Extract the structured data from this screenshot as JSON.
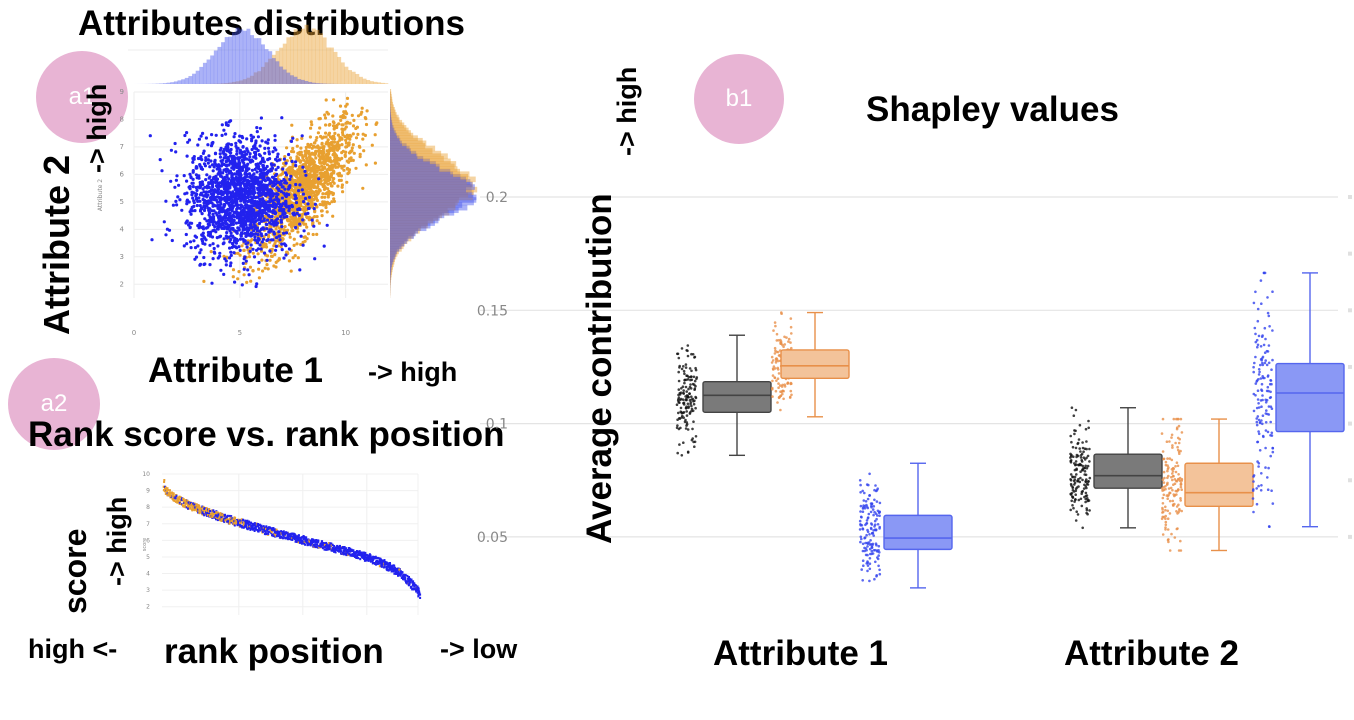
{
  "badges": {
    "a1": "a1",
    "a2": "a2",
    "b1": "b1"
  },
  "panel_a1": {
    "title": "Attributes distributions",
    "xlabel": "Attribute 1",
    "xlabel_dir": "-> high",
    "ylabel": "Attribute 2",
    "ylabel_dir": "-> high",
    "inner_ylabel": "Attribute 2",
    "xticks": [
      "0",
      "5",
      "10"
    ],
    "yticks": [
      "2",
      "3",
      "4",
      "5",
      "6",
      "7",
      "8",
      "9"
    ]
  },
  "panel_a2": {
    "title": "Rank score vs. rank position",
    "ylabel": "score",
    "ylabel_dir": "-> high",
    "xlabel": "rank position",
    "x_left": "high <-",
    "x_right": "-> low",
    "inner_ylabel": "score",
    "yticks": [
      "2",
      "3",
      "4",
      "5",
      "6",
      "7",
      "8",
      "9",
      "10"
    ]
  },
  "panel_b1": {
    "title": "Shapley values",
    "ylabel": "Average contribution",
    "ylabel_dir": "-> high",
    "categories": [
      "Attribute 1",
      "Attribute 2"
    ],
    "yticks": [
      "0.05",
      "0.1",
      "0.15",
      "0.2"
    ]
  },
  "colors": {
    "blue": "#2222ee",
    "orange": "#e8a030",
    "box_blue": "#5566ee",
    "box_orange": "#e8904a",
    "box_gray": "#444444"
  },
  "chart_data": [
    {
      "type": "scatter",
      "title": "Attributes distributions",
      "xlabel": "Attribute 1",
      "ylabel": "Attribute 2",
      "xlim": [
        0,
        12
      ],
      "ylim": [
        1.5,
        9
      ],
      "series": [
        {
          "color": "#2222ee",
          "center": [
            5,
            5.2
          ],
          "spread": [
            1.3,
            1.1
          ],
          "correlation": 0
        },
        {
          "color": "#e8a030",
          "center": [
            8,
            5.5
          ],
          "spread": [
            1.3,
            1.3
          ],
          "correlation": 0.75
        }
      ],
      "marginals": "histograms on top (Attribute 1) and right (Attribute 2)",
      "grid": true
    },
    {
      "type": "scatter",
      "title": "Rank score vs. rank position",
      "xlabel": "rank position",
      "ylabel": "score",
      "ylim": [
        1.5,
        10
      ],
      "series": [
        {
          "color": "#e8a030",
          "score_range": [
            10,
            3.5
          ],
          "concentration": "top ranks"
        },
        {
          "color": "#2222ee",
          "score_range": [
            7,
            1.8
          ],
          "concentration": "lower ranks"
        }
      ],
      "grid": true
    },
    {
      "type": "box",
      "title": "Shapley values",
      "ylabel": "Average contribution",
      "categories": [
        "Attribute 1",
        "Attribute 2"
      ],
      "ylim": [
        0.023,
        0.222
      ],
      "series": [
        {
          "color": "#444444",
          "boxes": [
            {
              "min": 0.086,
              "q1": 0.105,
              "median": 0.1125,
              "q3": 0.1185,
              "max": 0.139
            },
            {
              "min": 0.054,
              "q1": 0.0715,
              "median": 0.077,
              "q3": 0.0865,
              "max": 0.107
            }
          ]
        },
        {
          "color": "#e8904a",
          "boxes": [
            {
              "min": 0.103,
              "q1": 0.12,
              "median": 0.1255,
              "q3": 0.1325,
              "max": 0.149
            },
            {
              "min": 0.044,
              "q1": 0.0635,
              "median": 0.0695,
              "q3": 0.0825,
              "max": 0.102
            }
          ]
        },
        {
          "color": "#5566ee",
          "boxes": [
            {
              "min": 0.0275,
              "q1": 0.0445,
              "median": 0.0495,
              "q3": 0.0595,
              "max": 0.0825
            },
            {
              "min": 0.0545,
              "q1": 0.0965,
              "median": 0.1135,
              "q3": 0.1265,
              "max": 0.1665
            }
          ]
        }
      ],
      "jitter_points": true,
      "grid": true
    }
  ]
}
